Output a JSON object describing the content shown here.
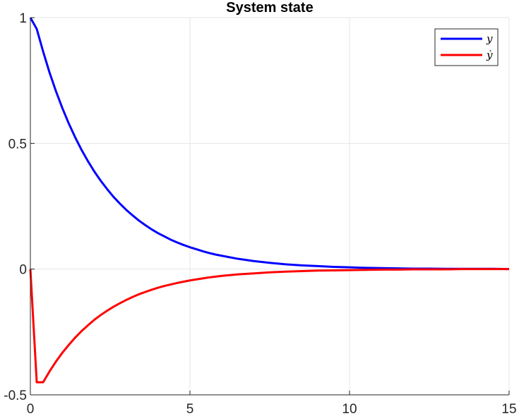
{
  "chart_data": {
    "type": "line",
    "title": "System state",
    "xlabel": "",
    "ylabel": "",
    "xlim": [
      0,
      15
    ],
    "ylim": [
      -0.5,
      1
    ],
    "xticks": [
      0,
      5,
      10,
      15
    ],
    "xtick_labels": [
      "0",
      "5",
      "10",
      "15"
    ],
    "yticks": [
      -0.5,
      0,
      0.5,
      1
    ],
    "ytick_labels": [
      "-0.5",
      "0",
      "0.5",
      "1"
    ],
    "grid": true,
    "legend_position": "top-right",
    "series": [
      {
        "name": "y",
        "legend_label": "y",
        "color": "#0000ff",
        "x": [
          0,
          0.2,
          0.4,
          0.6,
          0.8,
          1.0,
          1.2,
          1.4,
          1.6,
          1.8,
          2.0,
          2.2,
          2.4,
          2.6,
          2.8,
          3.0,
          3.2,
          3.4,
          3.6,
          3.8,
          4.0,
          4.2,
          4.4,
          4.6,
          4.8,
          5.0,
          5.2,
          5.4,
          5.6,
          5.8,
          6.0,
          6.5,
          7.0,
          7.5,
          8.0,
          8.5,
          9.0,
          9.5,
          10.0,
          10.5,
          11.0,
          11.5,
          12.0,
          12.5,
          13.0,
          13.5,
          14.0,
          14.5,
          15.0
        ],
        "values": [
          1.0,
          0.955,
          0.865,
          0.782,
          0.708,
          0.641,
          0.58,
          0.525,
          0.475,
          0.43,
          0.389,
          0.352,
          0.319,
          0.288,
          0.261,
          0.236,
          0.214,
          0.193,
          0.175,
          0.158,
          0.143,
          0.13,
          0.117,
          0.106,
          0.096,
          0.087,
          0.079,
          0.071,
          0.064,
          0.058,
          0.053,
          0.041,
          0.032,
          0.025,
          0.019,
          0.015,
          0.012,
          0.009,
          0.007,
          0.005,
          0.004,
          0.003,
          0.002,
          0.002,
          0.001,
          0.001,
          0.001,
          0.001,
          0.0
        ]
      },
      {
        "name": "ẏ",
        "legend_label": "ẏ",
        "color": "#ff0000",
        "x": [
          0,
          0.2,
          0.4,
          0.6,
          0.8,
          1.0,
          1.2,
          1.4,
          1.6,
          1.8,
          2.0,
          2.2,
          2.4,
          2.6,
          2.8,
          3.0,
          3.2,
          3.4,
          3.6,
          3.8,
          4.0,
          4.2,
          4.4,
          4.6,
          4.8,
          5.0,
          5.2,
          5.4,
          5.6,
          5.8,
          6.0,
          6.5,
          7.0,
          7.5,
          8.0,
          8.5,
          9.0,
          9.5,
          10.0,
          10.5,
          11.0,
          11.5,
          12.0,
          12.5,
          13.0,
          13.5,
          14.0,
          14.5,
          15.0
        ],
        "values": [
          0.0,
          -0.45,
          -0.45,
          -0.407,
          -0.368,
          -0.333,
          -0.302,
          -0.273,
          -0.247,
          -0.224,
          -0.202,
          -0.183,
          -0.166,
          -0.15,
          -0.136,
          -0.123,
          -0.111,
          -0.1,
          -0.091,
          -0.082,
          -0.074,
          -0.067,
          -0.061,
          -0.055,
          -0.05,
          -0.045,
          -0.041,
          -0.037,
          -0.033,
          -0.03,
          -0.027,
          -0.021,
          -0.017,
          -0.013,
          -0.01,
          -0.008,
          -0.006,
          -0.005,
          -0.004,
          -0.003,
          -0.002,
          -0.002,
          -0.001,
          -0.001,
          -0.001,
          0.0,
          0.0,
          0.0,
          0.0
        ]
      }
    ]
  }
}
